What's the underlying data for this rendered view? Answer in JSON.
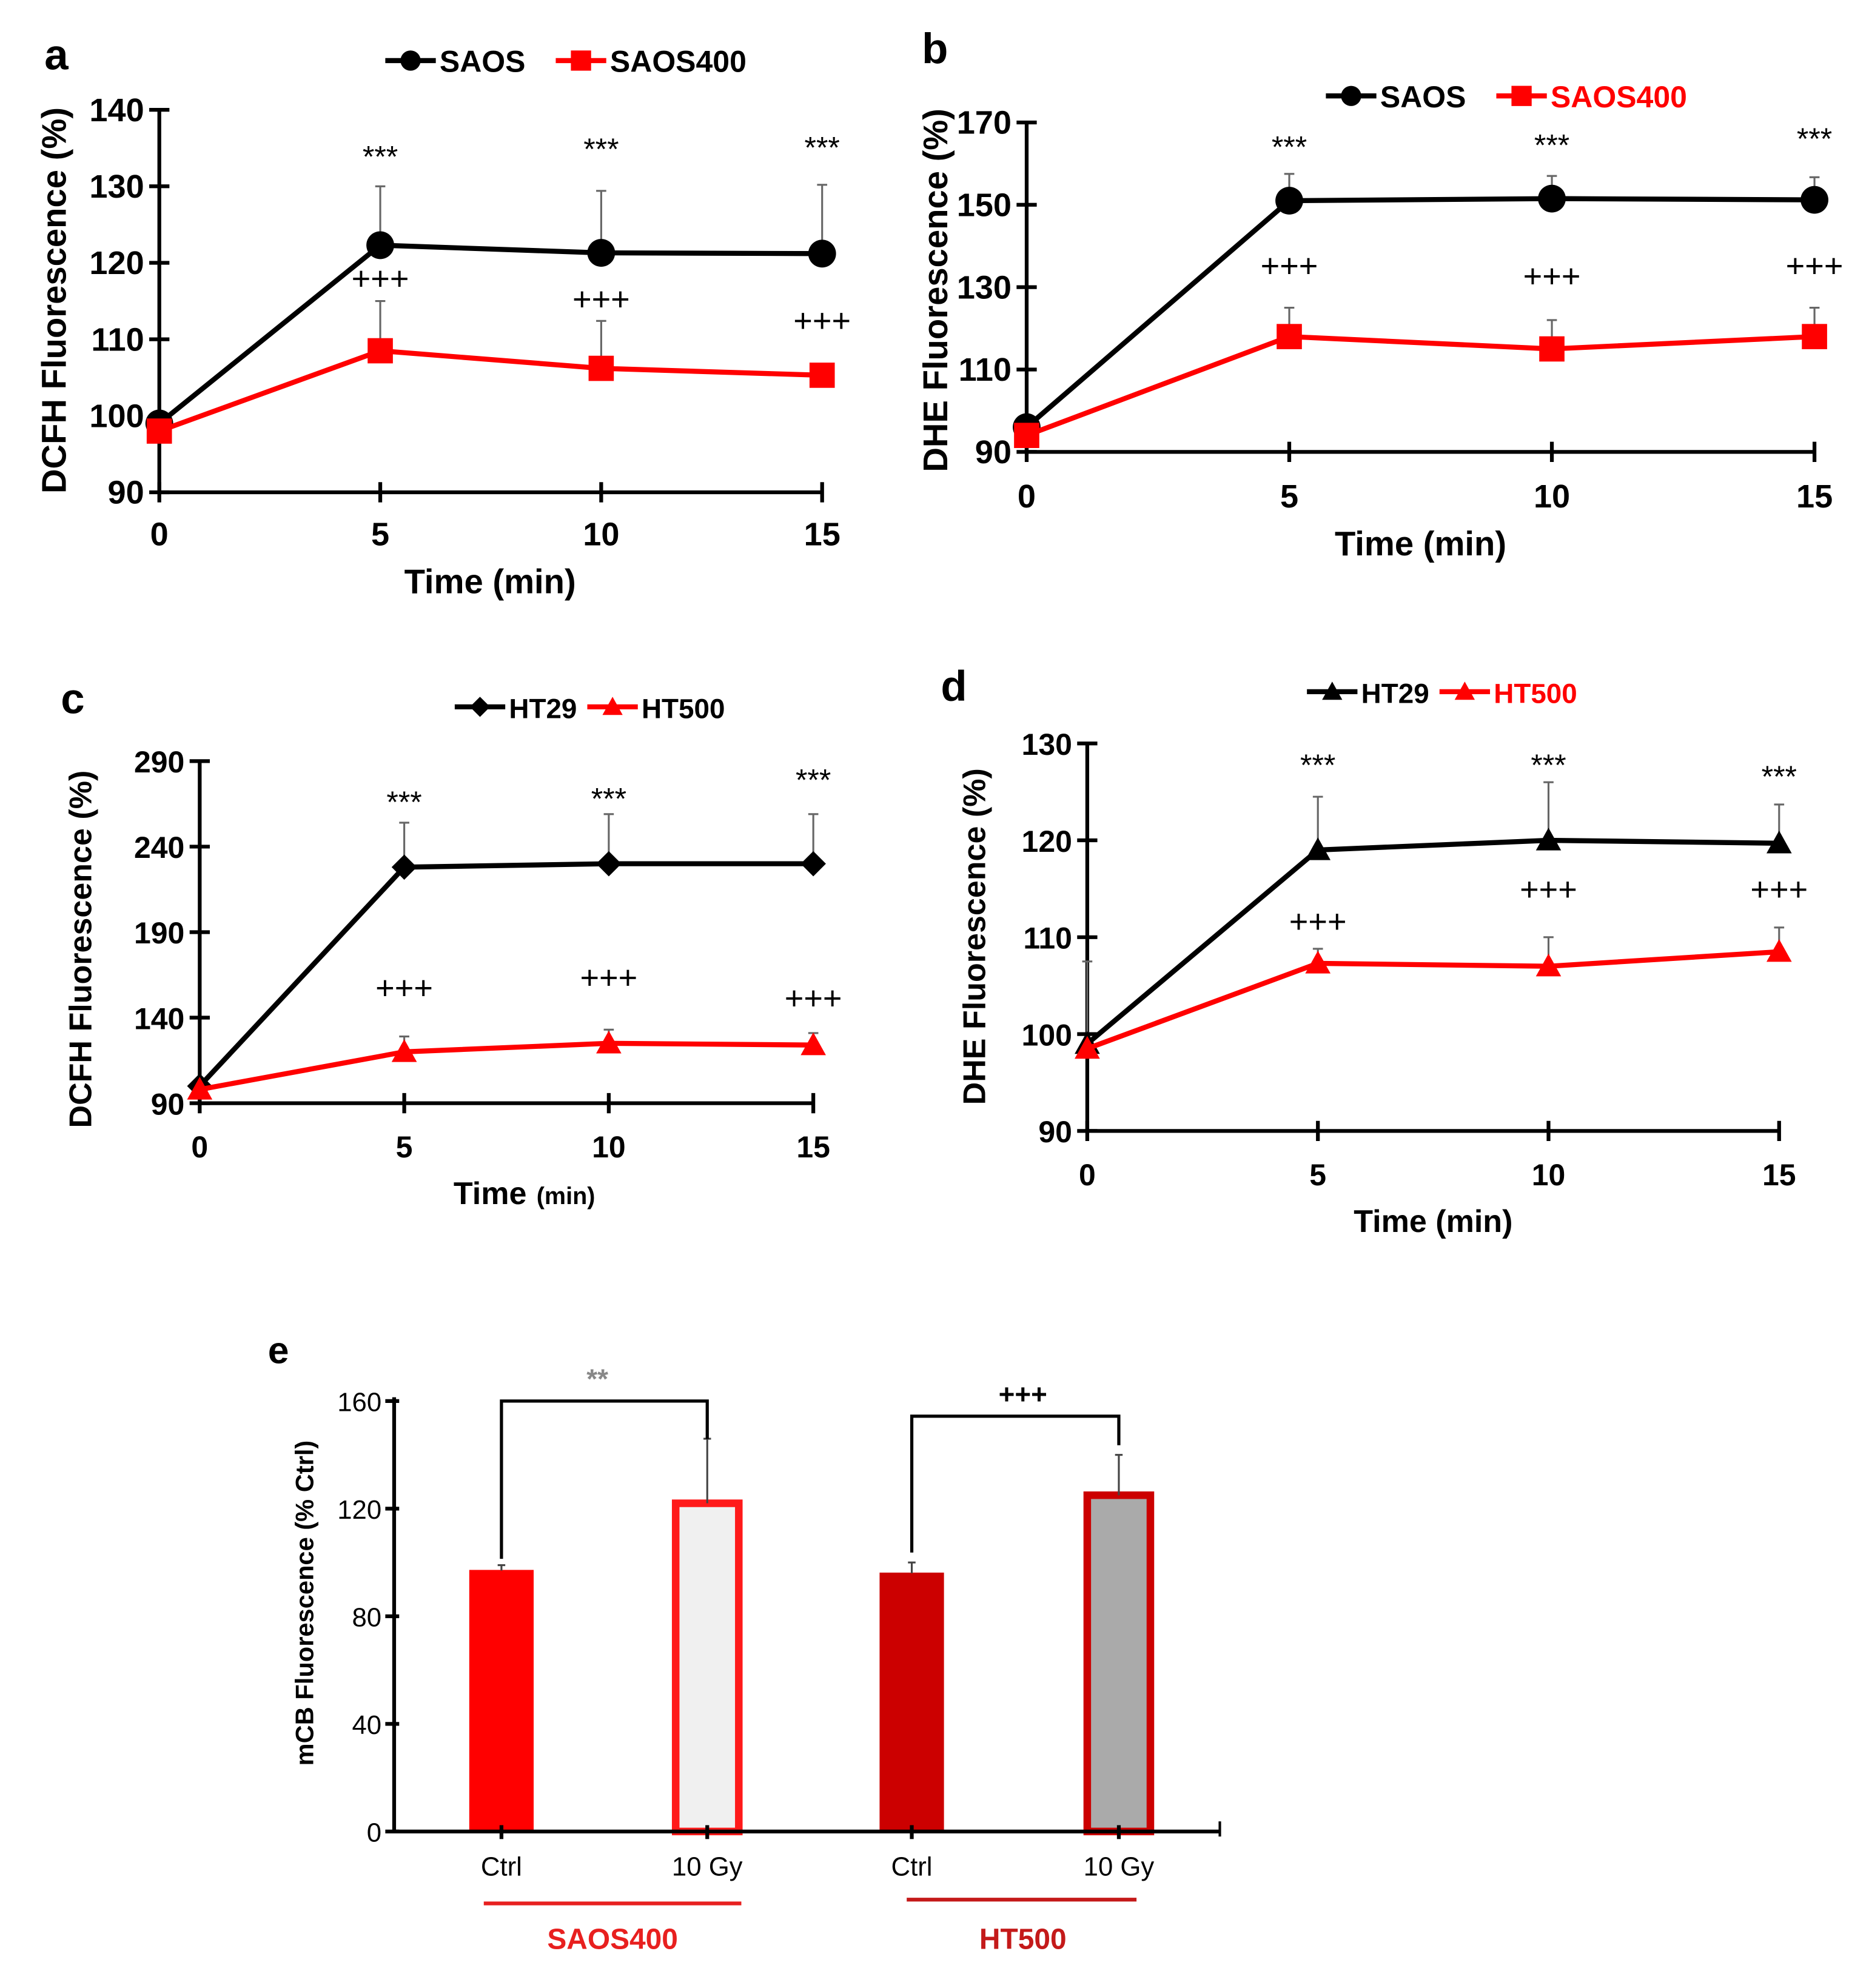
{
  "chart_data": [
    {
      "panel": "a",
      "type": "line",
      "xlabel": "Time (min)",
      "ylabel": "DCFH Fluorescence (%)",
      "x": [
        0,
        5,
        10,
        15
      ],
      "xticks": [
        "0",
        "5",
        "10",
        "15"
      ],
      "ylim": [
        90,
        140
      ],
      "yticks": [
        "90",
        "100",
        "110",
        "120",
        "130",
        "140"
      ],
      "legend_position": "top",
      "series": [
        {
          "name": "SAOS",
          "color": "#000000",
          "marker": "circle",
          "values": [
            99,
            122.3,
            121.3,
            121.2
          ],
          "errors": [
            0,
            7.7,
            8.1,
            9.0
          ]
        },
        {
          "name": "SAOS400",
          "color": "#ff0000",
          "marker": "square",
          "values": [
            98,
            108.5,
            106.2,
            105.3
          ],
          "errors": [
            0,
            6.5,
            6.2,
            0
          ]
        }
      ],
      "annotations": [
        {
          "text": "***",
          "x": 5,
          "y": 132.5
        },
        {
          "text": "***",
          "x": 10,
          "y": 133.5
        },
        {
          "text": "***",
          "x": 15,
          "y": 133.7
        },
        {
          "text": "+++",
          "x": 5,
          "y": 116.5
        },
        {
          "text": "+++",
          "x": 10,
          "y": 113.8
        },
        {
          "text": "+++",
          "x": 15,
          "y": 111
        }
      ]
    },
    {
      "panel": "b",
      "type": "line",
      "xlabel": "Time (min)",
      "ylabel": "DHE Fluorescence (%)",
      "x": [
        0,
        5,
        10,
        15
      ],
      "xticks": [
        "0",
        "5",
        "10",
        "15"
      ],
      "ylim": [
        90,
        170
      ],
      "yticks": [
        "90",
        "110",
        "130",
        "150",
        "170"
      ],
      "legend_position": "top",
      "series": [
        {
          "name": "SAOS",
          "color": "#000000",
          "marker": "circle",
          "values": [
            96,
            151,
            151.5,
            151.2
          ],
          "errors": [
            0,
            6.5,
            5.5,
            5.5
          ]
        },
        {
          "name": "SAOS400",
          "color": "#ff0000",
          "marker": "square",
          "values": [
            94,
            118,
            115,
            118
          ],
          "errors": [
            0,
            7,
            7,
            7
          ]
        }
      ],
      "annotations": [
        {
          "text": "***",
          "x": 5,
          "y": 161.5
        },
        {
          "text": "***",
          "x": 10,
          "y": 162
        },
        {
          "text": "***",
          "x": 15,
          "y": 163.5
        },
        {
          "text": "+++",
          "x": 5,
          "y": 132.5
        },
        {
          "text": "+++",
          "x": 10,
          "y": 130
        },
        {
          "text": "+++",
          "x": 15,
          "y": 132.5
        }
      ]
    },
    {
      "panel": "c",
      "type": "line",
      "xlabel": "Time",
      "xlabel_unit": "(min)",
      "ylabel": "DCFH Fluorescence (%)",
      "x": [
        0,
        5,
        10,
        15
      ],
      "xticks": [
        "0",
        "5",
        "10",
        "15"
      ],
      "ylim": [
        90,
        290
      ],
      "yticks": [
        "90",
        "140",
        "190",
        "240",
        "290"
      ],
      "legend_position": "top",
      "series": [
        {
          "name": "HT29",
          "color": "#000000",
          "marker": "diamond",
          "values": [
            100,
            228,
            230,
            230
          ],
          "errors": [
            0,
            26,
            29,
            29
          ]
        },
        {
          "name": "HT500",
          "color": "#ff0000",
          "marker": "triangle",
          "values": [
            98,
            120,
            125,
            124
          ],
          "errors": [
            0,
            9,
            8,
            7
          ]
        }
      ],
      "annotations": [
        {
          "text": "***",
          "x": 5,
          "y": 260
        },
        {
          "text": "***",
          "x": 10,
          "y": 262
        },
        {
          "text": "***",
          "x": 15,
          "y": 273
        },
        {
          "text": "+++",
          "x": 5,
          "y": 151
        },
        {
          "text": "+++",
          "x": 10,
          "y": 157
        },
        {
          "text": "+++",
          "x": 15,
          "y": 145
        }
      ]
    },
    {
      "panel": "d",
      "type": "line",
      "xlabel": "Time (min)",
      "ylabel": "DHE Fluorescence (%)",
      "x": [
        0,
        5,
        10,
        15
      ],
      "xticks": [
        "0",
        "5",
        "10",
        "15"
      ],
      "ylim": [
        90,
        130
      ],
      "yticks": [
        "90",
        "100",
        "110",
        "120",
        "130"
      ],
      "legend_position": "top",
      "series": [
        {
          "name": "HT29",
          "color": "#000000",
          "marker": "triangle",
          "values": [
            99,
            119,
            120,
            119.7
          ],
          "errors": [
            8.5,
            5.5,
            6,
            4
          ]
        },
        {
          "name": "HT500",
          "color": "#ff0000",
          "marker": "triangle",
          "values": [
            98.5,
            107.3,
            107,
            108.5
          ],
          "errors": [
            0,
            1.5,
            3,
            2.5
          ]
        }
      ],
      "annotations": [
        {
          "text": "***",
          "x": 5,
          "y": 126.7
        },
        {
          "text": "***",
          "x": 10,
          "y": 126.7
        },
        {
          "text": "***",
          "x": 15,
          "y": 125.5
        },
        {
          "text": "+++",
          "x": 5,
          "y": 110.5
        },
        {
          "text": "+++",
          "x": 10,
          "y": 113.8
        },
        {
          "text": "+++",
          "x": 15,
          "y": 113.8
        }
      ]
    },
    {
      "panel": "e",
      "type": "bar",
      "ylabel": "mCB Fluorescence (% Ctrl)",
      "categories": [
        "Ctrl",
        "10 Gy",
        "Ctrl",
        "10 Gy"
      ],
      "groups": [
        {
          "label": "SAOS400",
          "color": "#e8201f"
        },
        {
          "label": "HT500",
          "color": "#c41a1a"
        }
      ],
      "values": [
        97,
        122,
        96,
        125
      ],
      "errors": [
        2,
        24,
        4,
        15
      ],
      "fill_colors": [
        "#ff0000",
        "#f0f0f0",
        "#cc0000",
        "#aaaaaa"
      ],
      "border_colors": [
        "#ff0000",
        "#ff1a1a",
        "#cc0000",
        "#cc0000"
      ],
      "ylim": [
        0,
        160
      ],
      "yticks": [
        "0",
        "40",
        "80",
        "120",
        "160"
      ],
      "brackets": [
        {
          "text": "**",
          "from": 0,
          "to": 1
        },
        {
          "text": "+++",
          "from": 2,
          "to": 3
        }
      ]
    }
  ]
}
